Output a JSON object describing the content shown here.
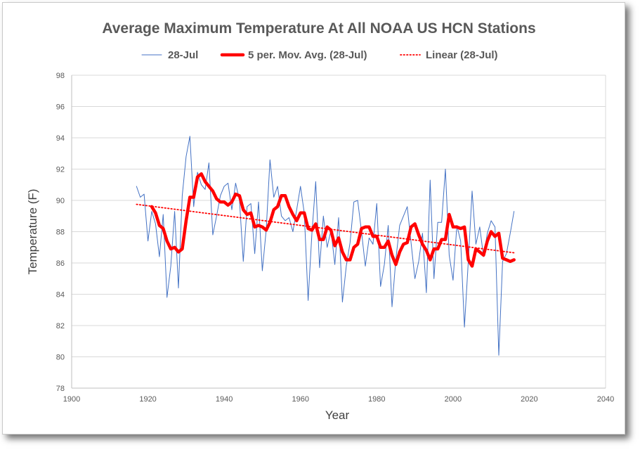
{
  "chart_data": {
    "type": "line",
    "title": "Average Maximum Temperature At All NOAA US HCN Stations",
    "xlabel": "Year",
    "ylabel": "Temperature (F)",
    "xlim": [
      1900,
      2040
    ],
    "ylim": [
      78,
      98
    ],
    "x_ticks": [
      1900,
      1920,
      1940,
      1960,
      1980,
      2000,
      2020,
      2040
    ],
    "y_ticks": [
      78,
      80,
      82,
      84,
      86,
      88,
      90,
      92,
      94,
      96,
      98
    ],
    "grid": "horizontal major gridlines",
    "legend_position": "top",
    "series": [
      {
        "name": "28-Jul",
        "style": "thin line",
        "color": "#4472c4",
        "x": [
          1917,
          1918,
          1919,
          1920,
          1921,
          1922,
          1923,
          1924,
          1925,
          1926,
          1927,
          1928,
          1929,
          1930,
          1931,
          1932,
          1933,
          1934,
          1935,
          1936,
          1937,
          1938,
          1939,
          1940,
          1941,
          1942,
          1943,
          1944,
          1945,
          1946,
          1947,
          1948,
          1949,
          1950,
          1951,
          1952,
          1953,
          1954,
          1955,
          1956,
          1957,
          1958,
          1959,
          1960,
          1961,
          1962,
          1963,
          1964,
          1965,
          1966,
          1967,
          1968,
          1969,
          1970,
          1971,
          1972,
          1973,
          1974,
          1975,
          1976,
          1977,
          1978,
          1979,
          1980,
          1981,
          1982,
          1983,
          1984,
          1985,
          1986,
          1987,
          1988,
          1989,
          1990,
          1991,
          1992,
          1993,
          1994,
          1995,
          1996,
          1997,
          1998,
          1999,
          2000,
          2001,
          2002,
          2003,
          2004,
          2005,
          2006,
          2007,
          2008,
          2009,
          2010,
          2011,
          2012,
          2013,
          2014,
          2015,
          2016
        ],
        "y": [
          90.9,
          90.2,
          90.4,
          87.4,
          89.3,
          88.5,
          86.4,
          89.1,
          83.8,
          85.8,
          89.3,
          84.4,
          90.3,
          92.8,
          94.1,
          89.6,
          91.8,
          91.0,
          90.7,
          92.4,
          87.8,
          89.0,
          90.3,
          90.9,
          91.1,
          89.4,
          91.1,
          90.0,
          86.1,
          89.6,
          89.8,
          86.6,
          89.9,
          85.5,
          88.1,
          92.6,
          90.2,
          90.9,
          89.0,
          88.7,
          88.9,
          88.0,
          89.4,
          90.9,
          89.2,
          83.6,
          87.9,
          91.2,
          85.7,
          89.0,
          87.0,
          88.1,
          85.9,
          88.9,
          83.5,
          85.8,
          87.3,
          89.9,
          90.0,
          88.0,
          85.8,
          87.6,
          87.2,
          89.8,
          84.5,
          85.9,
          88.4,
          83.2,
          86.2,
          88.4,
          89.0,
          89.6,
          87.3,
          85.0,
          86.1,
          87.9,
          84.1,
          91.3,
          85.0,
          88.6,
          88.6,
          92.0,
          86.5,
          84.9,
          88.4,
          87.4,
          81.9,
          86.1,
          90.6,
          87.2,
          88.3,
          86.4,
          87.9,
          88.7,
          88.3,
          80.1,
          86.1,
          86.6,
          87.9,
          89.3
        ]
      },
      {
        "name": "5 per. Mov. Avg. (28-Jul)",
        "style": "thick line",
        "color": "#ff0000",
        "x": [
          1921,
          1922,
          1923,
          1924,
          1925,
          1926,
          1927,
          1928,
          1929,
          1930,
          1931,
          1932,
          1933,
          1934,
          1935,
          1936,
          1937,
          1938,
          1939,
          1940,
          1941,
          1942,
          1943,
          1944,
          1945,
          1946,
          1947,
          1948,
          1949,
          1950,
          1951,
          1952,
          1953,
          1954,
          1955,
          1956,
          1957,
          1958,
          1959,
          1960,
          1961,
          1962,
          1963,
          1964,
          1965,
          1966,
          1967,
          1968,
          1969,
          1970,
          1971,
          1972,
          1973,
          1974,
          1975,
          1976,
          1977,
          1978,
          1979,
          1980,
          1981,
          1982,
          1983,
          1984,
          1985,
          1986,
          1987,
          1988,
          1989,
          1990,
          1991,
          1992,
          1993,
          1994,
          1995,
          1996,
          1997,
          1998,
          1999,
          2000,
          2001,
          2002,
          2003,
          2004,
          2005,
          2006,
          2007,
          2008,
          2009,
          2010,
          2011,
          2012,
          2013,
          2014,
          2015,
          2016
        ],
        "y": [
          89.6,
          89.2,
          88.4,
          88.2,
          87.4,
          86.9,
          87.0,
          86.7,
          86.9,
          88.7,
          90.2,
          90.2,
          91.5,
          91.7,
          91.2,
          90.9,
          90.6,
          90.1,
          89.9,
          89.9,
          89.7,
          89.9,
          90.4,
          90.3,
          89.4,
          89.1,
          89.2,
          88.3,
          88.4,
          88.3,
          88.1,
          88.6,
          89.4,
          89.6,
          90.3,
          90.3,
          89.6,
          89.1,
          88.7,
          89.2,
          89.2,
          88.2,
          88.1,
          88.5,
          87.5,
          87.5,
          88.3,
          88.1,
          87.1,
          87.6,
          86.7,
          86.2,
          86.2,
          87.0,
          87.2,
          88.2,
          88.3,
          88.3,
          87.7,
          87.7,
          87.0,
          87.0,
          87.4,
          86.5,
          85.9,
          86.7,
          87.2,
          87.3,
          88.3,
          88.5,
          87.8,
          87.2,
          86.8,
          86.2,
          86.9,
          86.9,
          87.5,
          87.5,
          89.1,
          88.3,
          88.3,
          88.2,
          88.3,
          86.2,
          85.8,
          86.9,
          86.7,
          86.5,
          87.4,
          88.0,
          87.7,
          87.9,
          86.3,
          86.2,
          86.1,
          86.2
        ]
      },
      {
        "name": "Linear (28-Jul)",
        "style": "dotted trendline",
        "color": "#ff0000",
        "x": [
          1917,
          2016
        ],
        "y": [
          89.75,
          86.65
        ]
      }
    ]
  }
}
